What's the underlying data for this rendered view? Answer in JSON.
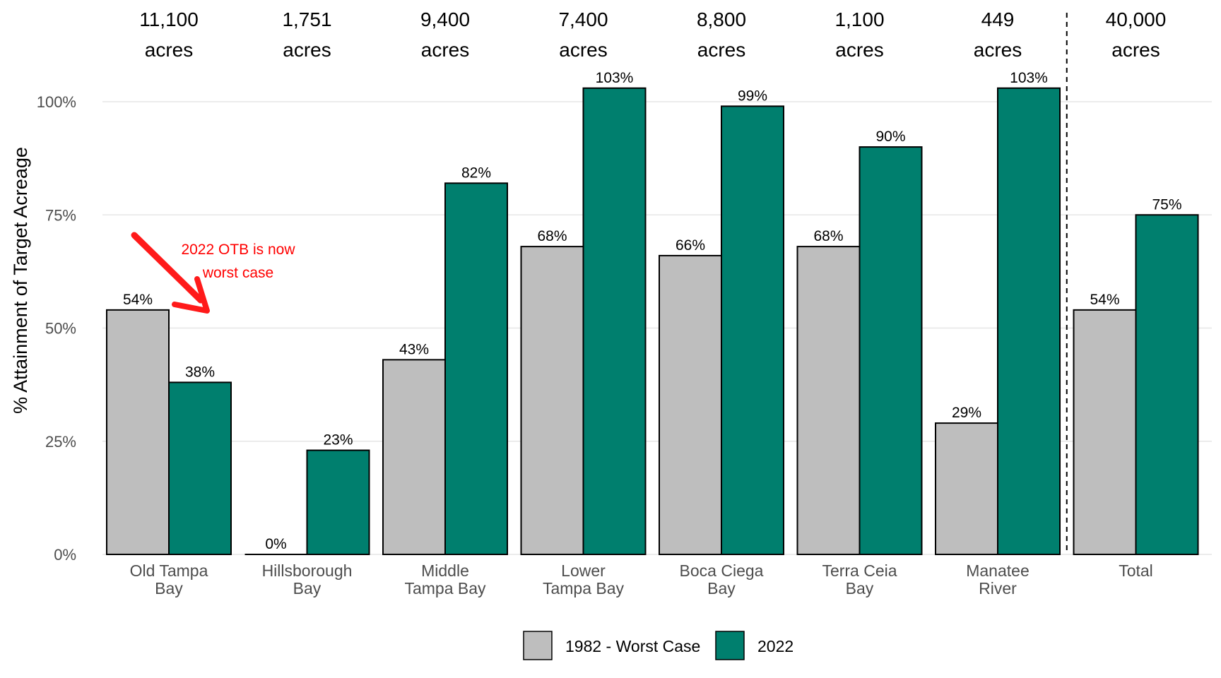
{
  "chart_data": {
    "type": "bar",
    "title": "",
    "xlabel": "",
    "ylabel": "% Attainment of Target Acreage",
    "ylim": [
      0,
      1.1
    ],
    "yticks": [
      0,
      0.25,
      0.5,
      0.75,
      1.0
    ],
    "ytick_labels": [
      "0%",
      "25%",
      "50%",
      "75%",
      "100%"
    ],
    "grid": true,
    "legend_position": "bottom",
    "categories": [
      [
        "Old Tampa",
        "Bay"
      ],
      [
        "Hillsborough",
        "Bay"
      ],
      [
        "Middle",
        "Tampa Bay"
      ],
      [
        "Lower",
        "Tampa Bay"
      ],
      [
        "Boca Ciega",
        "Bay"
      ],
      [
        "Terra Ceia",
        "Bay"
      ],
      [
        "Manatee",
        "River"
      ],
      [
        "Total"
      ]
    ],
    "acreage": [
      "11,100",
      "1,751",
      "9,400",
      "7,400",
      "8,800",
      "1,100",
      "449",
      "40,000"
    ],
    "acreage_unit": "acres",
    "series": [
      {
        "name": "1982 - Worst Case",
        "color": "#bebebe",
        "values": [
          0.54,
          0.0,
          0.43,
          0.68,
          0.66,
          0.68,
          0.29,
          0.54
        ],
        "labels": [
          "54%",
          "0%",
          "43%",
          "68%",
          "66%",
          "68%",
          "29%",
          "54%"
        ]
      },
      {
        "name": "2022",
        "color": "#007f6e",
        "values": [
          0.38,
          0.23,
          0.82,
          1.03,
          0.99,
          0.9,
          1.03,
          0.75
        ],
        "labels": [
          "38%",
          "23%",
          "82%",
          "103%",
          "99%",
          "90%",
          "103%",
          "75%"
        ]
      }
    ],
    "annotation": {
      "lines": [
        "2022 OTB is now",
        "worst case"
      ],
      "color": "#ff0000",
      "target_category": "Old Tampa Bay"
    },
    "separator": "dashed line before Total"
  }
}
